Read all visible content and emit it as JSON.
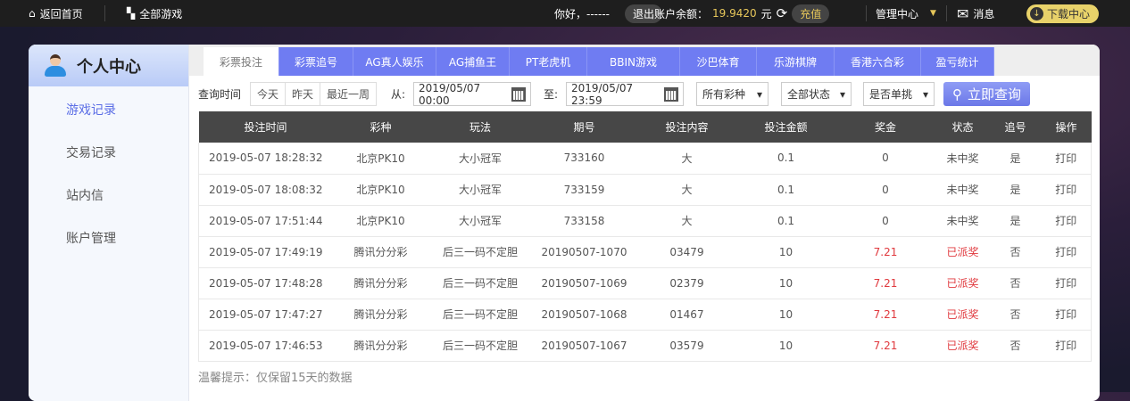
{
  "topbar": {
    "home": "返回首页",
    "all_games": "全部游戏",
    "greeting": "你好，------",
    "logout": "退出",
    "balance_label": "账户余额：",
    "balance": "19.9420",
    "currency": "元",
    "recharge": "充值",
    "admin": "管理中心",
    "messages": "消息",
    "download": "下载中心"
  },
  "sidebar": {
    "title": "个人中心",
    "items": [
      {
        "label": "游戏记录",
        "active": true
      },
      {
        "label": "交易记录"
      },
      {
        "label": "站内信"
      },
      {
        "label": "账户管理"
      }
    ]
  },
  "tabs": [
    "彩票投注",
    "彩票追号",
    "AG真人娱乐",
    "AG捕鱼王",
    "PT老虎机",
    "BBIN游戏",
    "沙巴体育",
    "乐游棋牌",
    "香港六合彩",
    "盈亏统计"
  ],
  "filters": {
    "label": "查询时间",
    "today": "今天",
    "yesterday": "昨天",
    "week": "最近一周",
    "from_label": "从:",
    "from": "2019/05/07 00:00",
    "to_label": "至:",
    "to": "2019/05/07 23:59",
    "lottery": "所有彩种",
    "status": "全部状态",
    "single": "是否单挑",
    "search": "立即查询"
  },
  "colors": {
    "accent": "#6f7cf2",
    "win": "#e0393e",
    "balance": "#e6c65a"
  },
  "table": {
    "headers": [
      "投注时间",
      "彩种",
      "玩法",
      "期号",
      "投注内容",
      "投注金额",
      "奖金",
      "状态",
      "追号",
      "操作"
    ],
    "rows": [
      [
        "2019-05-07 18:28:32",
        "北京PK10",
        "大小冠军",
        "733160",
        "大",
        "0.1",
        "0",
        "未中奖",
        "是",
        "打印"
      ],
      [
        "2019-05-07 18:08:32",
        "北京PK10",
        "大小冠军",
        "733159",
        "大",
        "0.1",
        "0",
        "未中奖",
        "是",
        "打印"
      ],
      [
        "2019-05-07 17:51:44",
        "北京PK10",
        "大小冠军",
        "733158",
        "大",
        "0.1",
        "0",
        "未中奖",
        "是",
        "打印"
      ],
      [
        "2019-05-07 17:49:19",
        "腾讯分分彩",
        "后三一码不定胆",
        "20190507-1070",
        "03479",
        "10",
        "7.21",
        "已派奖",
        "否",
        "打印"
      ],
      [
        "2019-05-07 17:48:28",
        "腾讯分分彩",
        "后三一码不定胆",
        "20190507-1069",
        "02379",
        "10",
        "7.21",
        "已派奖",
        "否",
        "打印"
      ],
      [
        "2019-05-07 17:47:27",
        "腾讯分分彩",
        "后三一码不定胆",
        "20190507-1068",
        "01467",
        "10",
        "7.21",
        "已派奖",
        "否",
        "打印"
      ],
      [
        "2019-05-07 17:46:53",
        "腾讯分分彩",
        "后三一码不定胆",
        "20190507-1067",
        "03579",
        "10",
        "7.21",
        "已派奖",
        "否",
        "打印"
      ]
    ]
  },
  "tip": "温馨提示：仅保留15天的数据"
}
